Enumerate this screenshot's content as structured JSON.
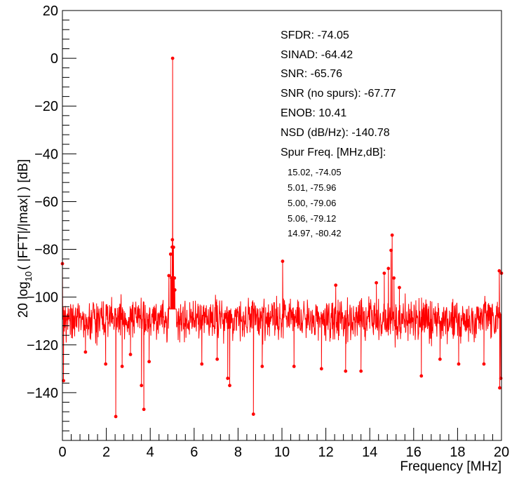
{
  "chart_data": {
    "type": "line",
    "xlabel": "Frequency [MHz]",
    "ylabel": "20 log10( |FFT|/|max| ) [dB]",
    "ylabel_parts": {
      "pre": "20 log",
      "sub": "10",
      "post": "( |FFT|/|max| ) [dB]"
    },
    "xlim": [
      0,
      20
    ],
    "ylim": [
      -160,
      20
    ],
    "xticks": [
      0,
      2,
      4,
      6,
      8,
      10,
      12,
      14,
      16,
      18,
      20
    ],
    "xtick_labels": [
      "0",
      "2",
      "4",
      "6",
      "8",
      "10",
      "12",
      "14",
      "16",
      "18",
      "20"
    ],
    "yticks": [
      -140,
      -120,
      -100,
      -80,
      -60,
      -40,
      -20,
      0,
      20
    ],
    "ytick_labels": [
      "−140",
      "−120",
      "−100",
      "−80",
      "−60",
      "−40",
      "−20",
      "0",
      "20"
    ],
    "grid": false,
    "series_color": "#ff0000",
    "noise_floor_db": -107,
    "noise_band_db": [
      -122,
      -97
    ],
    "peaks": [
      {
        "x": 0.0,
        "y": -86
      },
      {
        "x": 0.05,
        "y": -135
      },
      {
        "x": 1.05,
        "y": -123
      },
      {
        "x": 1.97,
        "y": -128
      },
      {
        "x": 2.43,
        "y": -150
      },
      {
        "x": 2.72,
        "y": -129
      },
      {
        "x": 3.1,
        "y": -124
      },
      {
        "x": 3.6,
        "y": -137
      },
      {
        "x": 3.71,
        "y": -147
      },
      {
        "x": 3.95,
        "y": -127
      },
      {
        "x": 4.85,
        "y": -91
      },
      {
        "x": 4.93,
        "y": -82
      },
      {
        "x": 4.97,
        "y": -92
      },
      {
        "x": 5.0,
        "y": -79.06
      },
      {
        "x": 5.01,
        "y": -75.96
      },
      {
        "x": 5.02,
        "y": 0
      },
      {
        "x": 5.06,
        "y": -79.12
      },
      {
        "x": 5.1,
        "y": -92
      },
      {
        "x": 5.12,
        "y": -97
      },
      {
        "x": 6.35,
        "y": -128
      },
      {
        "x": 7.05,
        "y": -126
      },
      {
        "x": 7.53,
        "y": -134
      },
      {
        "x": 7.62,
        "y": -137
      },
      {
        "x": 8.7,
        "y": -149
      },
      {
        "x": 9.1,
        "y": -129
      },
      {
        "x": 10.03,
        "y": -85
      },
      {
        "x": 10.55,
        "y": -129
      },
      {
        "x": 11.8,
        "y": -130
      },
      {
        "x": 12.45,
        "y": -95
      },
      {
        "x": 12.9,
        "y": -131
      },
      {
        "x": 13.6,
        "y": -131
      },
      {
        "x": 14.3,
        "y": -94
      },
      {
        "x": 14.66,
        "y": -90
      },
      {
        "x": 14.85,
        "y": -88
      },
      {
        "x": 14.97,
        "y": -80.42
      },
      {
        "x": 15.02,
        "y": -74.05
      },
      {
        "x": 15.1,
        "y": -92
      },
      {
        "x": 15.35,
        "y": -96
      },
      {
        "x": 16.35,
        "y": -133
      },
      {
        "x": 17.2,
        "y": -126
      },
      {
        "x": 18.05,
        "y": -128
      },
      {
        "x": 19.2,
        "y": -128
      },
      {
        "x": 19.9,
        "y": -89
      },
      {
        "x": 19.92,
        "y": -138
      },
      {
        "x": 19.97,
        "y": -134
      },
      {
        "x": 20.0,
        "y": -90
      }
    ]
  },
  "stats": {
    "sfdr": "SFDR: -74.05",
    "sinad": "SINAD: -64.42",
    "snr": "SNR: -65.76",
    "snr_no_spurs": "SNR (no spurs): -67.77",
    "enob": "ENOB: 10.41",
    "nsd": "NSD (dB/Hz): -140.78",
    "spur_header": "Spur Freq. [MHz,dB]:",
    "spurs": [
      "15.02, -74.05",
      "5.01, -75.96",
      "5.00, -79.06",
      "5.06, -79.12",
      "14.97, -80.42"
    ]
  }
}
